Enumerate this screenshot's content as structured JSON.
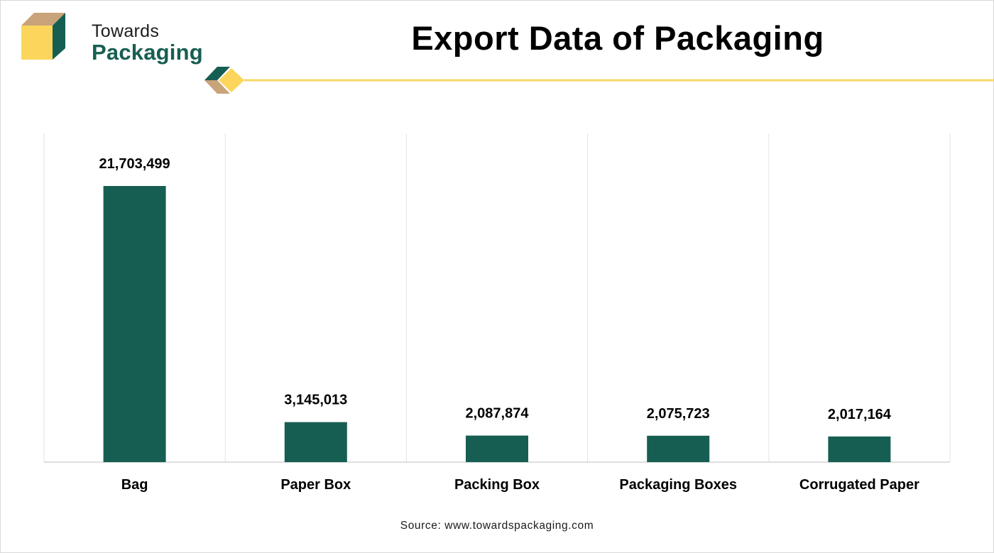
{
  "brand": {
    "name_line1": "Towards",
    "name_line2": "Packaging",
    "colors": {
      "green": "#175e52",
      "tan": "#c9a37a",
      "yellow": "#fcd65c"
    }
  },
  "title": "Export Data of Packaging",
  "source": "Source: www.towardspackaging.com",
  "chart_data": {
    "type": "bar",
    "title": "Export Data of Packaging",
    "categories": [
      "Bag",
      "Paper Box",
      "Packing Box",
      "Packaging Boxes",
      "Corrugated Paper"
    ],
    "values": [
      21703499,
      3145013,
      2087874,
      2075723,
      2017164
    ],
    "data_labels": [
      "21,703,499",
      "3,145,013",
      "2,087,874",
      "2,075,723",
      "2,017,164"
    ],
    "xlabel": "",
    "ylabel": "",
    "bar_color": "#175e52",
    "grid": "vertical",
    "legend": "none"
  }
}
